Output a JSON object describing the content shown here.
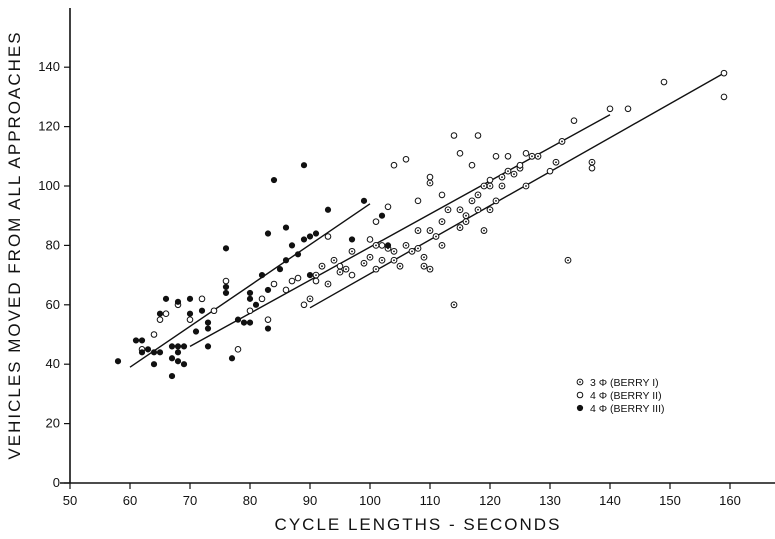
{
  "chart_data": {
    "type": "scatter",
    "xlabel": "CYCLE LENGTHS - SECONDS",
    "ylabel": "VEHICLES MOVED FROM ALL APPROACHES",
    "xlim": [
      50,
      160
    ],
    "ylim": [
      0,
      150
    ],
    "x_ticks": [
      50,
      60,
      70,
      80,
      90,
      100,
      110,
      120,
      130,
      140,
      150,
      160
    ],
    "y_ticks": [
      0,
      20,
      40,
      60,
      80,
      100,
      120,
      140
    ],
    "grid": false,
    "legend_position": "lower-right",
    "legend": [
      {
        "symbol": "dot-circle",
        "label": "3 Φ (BERRY I)"
      },
      {
        "symbol": "open-circle",
        "label": "4 Φ (BERRY II)"
      },
      {
        "symbol": "filled-circle",
        "label": "4 Φ (BERRY III)"
      }
    ],
    "series": [
      {
        "name": "3 Φ (BERRY I)",
        "marker": "dot-circle",
        "points": [
          [
            90,
            62
          ],
          [
            91,
            70
          ],
          [
            92,
            73
          ],
          [
            93,
            67
          ],
          [
            94,
            75
          ],
          [
            95,
            71
          ],
          [
            96,
            72
          ],
          [
            97,
            78
          ],
          [
            99,
            74
          ],
          [
            100,
            76
          ],
          [
            101,
            80
          ],
          [
            101,
            72
          ],
          [
            102,
            75
          ],
          [
            103,
            79
          ],
          [
            104,
            78
          ],
          [
            104,
            75
          ],
          [
            105,
            73
          ],
          [
            106,
            80
          ],
          [
            107,
            78
          ],
          [
            108,
            85
          ],
          [
            108,
            79
          ],
          [
            109,
            76
          ],
          [
            109,
            73
          ],
          [
            110,
            72
          ],
          [
            110,
            85
          ],
          [
            110,
            101
          ],
          [
            111,
            83
          ],
          [
            112,
            80
          ],
          [
            112,
            88
          ],
          [
            113,
            92
          ],
          [
            114,
            60
          ],
          [
            115,
            86
          ],
          [
            115,
            92
          ],
          [
            116,
            88
          ],
          [
            116,
            90
          ],
          [
            117,
            95
          ],
          [
            118,
            92
          ],
          [
            118,
            97
          ],
          [
            119,
            85
          ],
          [
            119,
            100
          ],
          [
            120,
            92
          ],
          [
            120,
            100
          ],
          [
            121,
            95
          ],
          [
            122,
            100
          ],
          [
            122,
            103
          ],
          [
            123,
            105
          ],
          [
            124,
            104
          ],
          [
            125,
            106
          ],
          [
            126,
            100
          ],
          [
            127,
            110
          ],
          [
            128,
            110
          ],
          [
            131,
            108
          ],
          [
            132,
            115
          ],
          [
            133,
            75
          ],
          [
            137,
            108
          ]
        ]
      },
      {
        "name": "4 Φ (BERRY II)",
        "marker": "open-circle",
        "points": [
          [
            62,
            45
          ],
          [
            64,
            50
          ],
          [
            65,
            55
          ],
          [
            66,
            57
          ],
          [
            68,
            60
          ],
          [
            70,
            55
          ],
          [
            72,
            62
          ],
          [
            74,
            58
          ],
          [
            76,
            68
          ],
          [
            78,
            45
          ],
          [
            80,
            58
          ],
          [
            82,
            62
          ],
          [
            83,
            55
          ],
          [
            84,
            67
          ],
          [
            86,
            65
          ],
          [
            87,
            68
          ],
          [
            88,
            69
          ],
          [
            89,
            60
          ],
          [
            91,
            68
          ],
          [
            93,
            83
          ],
          [
            95,
            73
          ],
          [
            97,
            70
          ],
          [
            100,
            82
          ],
          [
            101,
            88
          ],
          [
            102,
            80
          ],
          [
            103,
            93
          ],
          [
            104,
            107
          ],
          [
            106,
            109
          ],
          [
            108,
            95
          ],
          [
            110,
            103
          ],
          [
            112,
            97
          ],
          [
            114,
            117
          ],
          [
            115,
            111
          ],
          [
            117,
            107
          ],
          [
            118,
            117
          ],
          [
            120,
            102
          ],
          [
            121,
            110
          ],
          [
            123,
            110
          ],
          [
            125,
            107
          ],
          [
            126,
            111
          ],
          [
            130,
            105
          ],
          [
            134,
            122
          ],
          [
            137,
            106
          ],
          [
            140,
            126
          ],
          [
            143,
            126
          ],
          [
            149,
            135
          ],
          [
            159,
            138
          ],
          [
            159,
            130
          ]
        ]
      },
      {
        "name": "4 Φ (BERRY III)",
        "marker": "filled-circle",
        "points": [
          [
            58,
            41
          ],
          [
            61,
            48
          ],
          [
            62,
            48
          ],
          [
            62,
            44
          ],
          [
            63,
            45
          ],
          [
            64,
            44
          ],
          [
            64,
            40
          ],
          [
            65,
            44
          ],
          [
            65,
            57
          ],
          [
            66,
            62
          ],
          [
            67,
            36
          ],
          [
            67,
            42
          ],
          [
            67,
            46
          ],
          [
            68,
            41
          ],
          [
            68,
            44
          ],
          [
            68,
            46
          ],
          [
            68,
            61
          ],
          [
            69,
            40
          ],
          [
            69,
            46
          ],
          [
            70,
            62
          ],
          [
            70,
            57
          ],
          [
            71,
            51
          ],
          [
            72,
            58
          ],
          [
            73,
            46
          ],
          [
            73,
            52
          ],
          [
            73,
            54
          ],
          [
            76,
            64
          ],
          [
            76,
            66
          ],
          [
            76,
            79
          ],
          [
            77,
            42
          ],
          [
            78,
            55
          ],
          [
            79,
            54
          ],
          [
            80,
            54
          ],
          [
            80,
            62
          ],
          [
            80,
            64
          ],
          [
            81,
            60
          ],
          [
            82,
            70
          ],
          [
            83,
            52
          ],
          [
            83,
            65
          ],
          [
            83,
            84
          ],
          [
            84,
            102
          ],
          [
            85,
            72
          ],
          [
            86,
            86
          ],
          [
            86,
            75
          ],
          [
            87,
            80
          ],
          [
            88,
            77
          ],
          [
            89,
            82
          ],
          [
            89,
            107
          ],
          [
            90,
            83
          ],
          [
            90,
            70
          ],
          [
            91,
            84
          ],
          [
            93,
            92
          ],
          [
            97,
            82
          ],
          [
            99,
            95
          ],
          [
            102,
            90
          ],
          [
            103,
            80
          ]
        ]
      }
    ],
    "fit_lines": [
      {
        "series": "4 Φ (BERRY III)",
        "points": [
          [
            60,
            39
          ],
          [
            100,
            94
          ]
        ]
      },
      {
        "series": "4 Φ (BERRY II)",
        "points": [
          [
            70,
            46
          ],
          [
            140,
            124
          ]
        ]
      },
      {
        "series": "3 Φ (BERRY I)",
        "points": [
          [
            90,
            59
          ],
          [
            159,
            138
          ]
        ]
      }
    ]
  }
}
